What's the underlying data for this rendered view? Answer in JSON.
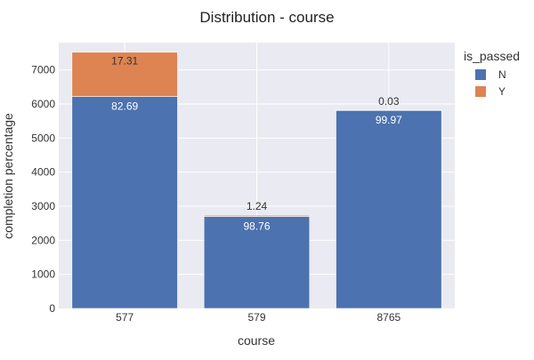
{
  "chart_data": {
    "type": "bar",
    "stacked": true,
    "title": "Distribution - course",
    "xlabel": "course",
    "ylabel": "completion percentage",
    "categories": [
      "577",
      "579",
      "8765"
    ],
    "ylim": [
      0,
      7800
    ],
    "yticks": [
      0,
      1000,
      2000,
      3000,
      4000,
      5000,
      6000,
      7000
    ],
    "grid": true,
    "legend_title": "is_passed",
    "legend_position": "top-right",
    "series": [
      {
        "name": "N",
        "color": "#4C72B0",
        "values": [
          6220,
          2700,
          5820
        ],
        "data_labels": [
          "82.69",
          "98.76",
          "99.97"
        ],
        "label_color": "#ffffff"
      },
      {
        "name": "Y",
        "color": "#DD8452",
        "values": [
          1300,
          35,
          2
        ],
        "data_labels": [
          "17.31",
          "1.24",
          "0.03"
        ],
        "label_color": "#333333"
      }
    ]
  }
}
